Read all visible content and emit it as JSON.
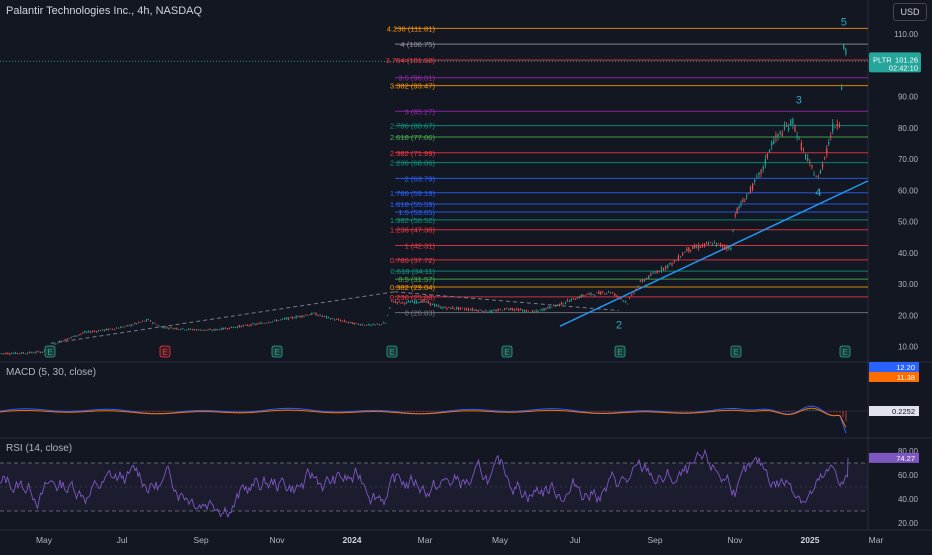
{
  "chart_data": {
    "type": "line",
    "title": "Palantir Technologies Inc., 4h, NASDAQ",
    "currency": "USD",
    "ticker": "PLTR",
    "last_price": "101.26",
    "countdown": "02:42:10",
    "price_axis": {
      "ylim": [
        6.5,
        115
      ],
      "ticks": [
        "10.00",
        "20.00",
        "30.00",
        "40.00",
        "50.00",
        "60.00",
        "70.00",
        "80.00",
        "90.00",
        "100.00",
        "110.00"
      ]
    },
    "x_axis_labels": [
      "May",
      "Jul",
      "Sep",
      "Nov",
      "2024",
      "Mar",
      "May",
      "Jul",
      "Sep",
      "Nov",
      "2025",
      "Mar"
    ],
    "fib_levels": [
      {
        "label": "0 (20.83)",
        "value": 20.83,
        "color": "#787b86"
      },
      {
        "label": "0.236 (25.88)",
        "value": 25.88,
        "color": "#f23645"
      },
      {
        "label": "0.382 (29.04)",
        "value": 29.04,
        "color": "#ff9800"
      },
      {
        "label": "0.5 (31.57)",
        "value": 31.57,
        "color": "#4caf50"
      },
      {
        "label": "0.618 (34.11)",
        "value": 34.11,
        "color": "#089981"
      },
      {
        "label": "0.786 (37.72)",
        "value": 37.72,
        "color": "#f23645"
      },
      {
        "label": "1 (42.31)",
        "value": 42.31,
        "color": "#f23645"
      },
      {
        "label": "1.236 (47.38)",
        "value": 47.38,
        "color": "#f23645"
      },
      {
        "label": "1.382 (50.52)",
        "value": 50.52,
        "color": "#089981"
      },
      {
        "label": "1.5 (53.05)",
        "value": 53.05,
        "color": "#2962ff"
      },
      {
        "label": "1.618 (55.59)",
        "value": 55.59,
        "color": "#2962ff"
      },
      {
        "label": "1.786 (59.19)",
        "value": 59.19,
        "color": "#2962ff"
      },
      {
        "label": "2 (63.79)",
        "value": 63.79,
        "color": "#2962ff"
      },
      {
        "label": "2.236 (68.86)",
        "value": 68.86,
        "color": "#089981"
      },
      {
        "label": "2.382 (71.99)",
        "value": 71.99,
        "color": "#f23645"
      },
      {
        "label": "2.618 (77.06)",
        "value": 77.06,
        "color": "#4caf50"
      },
      {
        "label": "2.786 (80.67)",
        "value": 80.67,
        "color": "#089981"
      },
      {
        "label": "3 (85.27)",
        "value": 85.27,
        "color": "#9c27b0"
      },
      {
        "label": "3.382 (93.47)",
        "value": 93.47,
        "color": "#ff9800"
      },
      {
        "label": "3.5 (96.01)",
        "value": 96.01,
        "color": "#9c27b0"
      },
      {
        "label": "3.764 (101.68)",
        "value": 101.68,
        "color": "#f23645"
      },
      {
        "label": "4 (106.75)",
        "value": 106.75,
        "color": "#9598a1"
      },
      {
        "label": "4.236 (111.81)",
        "value": 111.81,
        "color": "#ff9800"
      }
    ],
    "price_series": [
      {
        "t": 0,
        "v": 7.8
      },
      {
        "t": 0.03,
        "v": 7.9
      },
      {
        "t": 0.05,
        "v": 8.3
      },
      {
        "t": 0.07,
        "v": 11.5
      },
      {
        "t": 0.1,
        "v": 14.5
      },
      {
        "t": 0.13,
        "v": 15.5
      },
      {
        "t": 0.15,
        "v": 16.5
      },
      {
        "t": 0.175,
        "v": 18.5
      },
      {
        "t": 0.19,
        "v": 16.2
      },
      {
        "t": 0.22,
        "v": 15.5
      },
      {
        "t": 0.25,
        "v": 15.2
      },
      {
        "t": 0.28,
        "v": 16.3
      },
      {
        "t": 0.31,
        "v": 17.5
      },
      {
        "t": 0.34,
        "v": 19.0
      },
      {
        "t": 0.37,
        "v": 20.5
      },
      {
        "t": 0.39,
        "v": 19.0
      },
      {
        "t": 0.42,
        "v": 17.2
      },
      {
        "t": 0.44,
        "v": 16.8
      },
      {
        "t": 0.455,
        "v": 17.5
      },
      {
        "t": 0.462,
        "v": 24.5
      },
      {
        "t": 0.475,
        "v": 24.0
      },
      {
        "t": 0.5,
        "v": 24.5
      },
      {
        "t": 0.52,
        "v": 22.5
      },
      {
        "t": 0.55,
        "v": 22.0
      },
      {
        "t": 0.58,
        "v": 21.2
      },
      {
        "t": 0.6,
        "v": 22.2
      },
      {
        "t": 0.63,
        "v": 21.0
      },
      {
        "t": 0.66,
        "v": 23.5
      },
      {
        "t": 0.69,
        "v": 26.5
      },
      {
        "t": 0.72,
        "v": 27.5
      },
      {
        "t": 0.74,
        "v": 24.0
      },
      {
        "t": 0.755,
        "v": 30.5
      },
      {
        "t": 0.775,
        "v": 34.0
      },
      {
        "t": 0.795,
        "v": 37.0
      },
      {
        "t": 0.81,
        "v": 41.0
      },
      {
        "t": 0.84,
        "v": 43.0
      },
      {
        "t": 0.862,
        "v": 41.5
      },
      {
        "t": 0.867,
        "v": 52.5
      },
      {
        "t": 0.885,
        "v": 60.0
      },
      {
        "t": 0.9,
        "v": 67.0
      },
      {
        "t": 0.91,
        "v": 75.0
      },
      {
        "t": 0.92,
        "v": 78.0
      },
      {
        "t": 0.935,
        "v": 82.0
      },
      {
        "t": 0.945,
        "v": 74.0
      },
      {
        "t": 0.955,
        "v": 68.0
      },
      {
        "t": 0.965,
        "v": 63.5
      },
      {
        "t": 0.975,
        "v": 73.0
      },
      {
        "t": 0.982,
        "v": 80.0
      },
      {
        "t": 0.99,
        "v": 82.0
      },
      {
        "t": 0.995,
        "v": 106.0
      },
      {
        "t": 1.0,
        "v": 101.26
      }
    ],
    "wave_labels": [
      "2",
      "3",
      "4",
      "5"
    ],
    "earnings_markers": [
      "E",
      "E",
      "E",
      "E",
      "E",
      "E",
      "E",
      "E"
    ],
    "macd": {
      "title": "MACD (5, 30, close)",
      "values": [
        "12.20",
        "11.38",
        "0.2252"
      ]
    },
    "rsi": {
      "title": "RSI (14, close)",
      "ticks": [
        "80.00",
        "60.00",
        "40.00",
        "20.00"
      ],
      "value": "74.27"
    },
    "grid": false,
    "colors": {
      "background": "#131722",
      "up": "#26a69a",
      "down": "#ef5350",
      "trendline": "#2196f3",
      "wave_label": "#2fa8c2",
      "rsi": "#7e57c2",
      "macd_line": "#2962ff",
      "macd_signal": "#ff6d00"
    }
  }
}
